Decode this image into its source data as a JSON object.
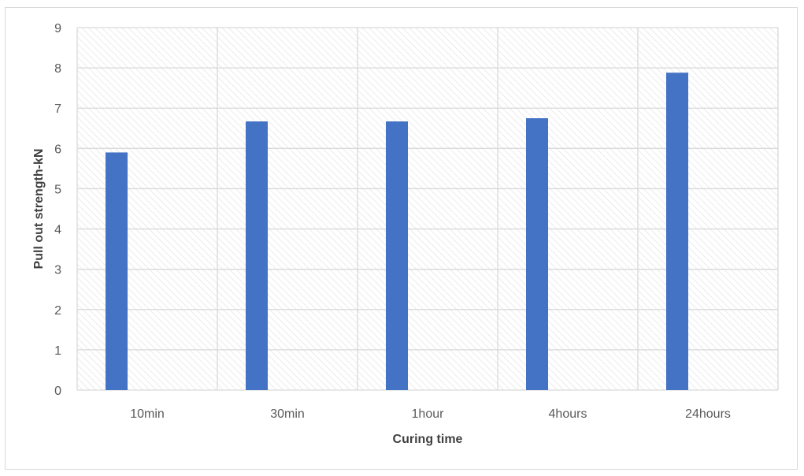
{
  "chart_data": {
    "type": "bar",
    "title": "",
    "xlabel": "Curing time",
    "ylabel": "Pull out strength-kN",
    "categories": [
      "10min",
      "30min",
      "1hour",
      "4hours",
      "24hours"
    ],
    "values": [
      5.9,
      6.67,
      6.67,
      6.75,
      7.88
    ],
    "ylim": [
      0,
      9
    ],
    "yticks": [
      0,
      1,
      2,
      3,
      4,
      5,
      6,
      7,
      8,
      9
    ],
    "grid": true,
    "legend": "none",
    "colors": {
      "bar": "#4472c4",
      "grid": "#d9d9d9",
      "hatch": "#e3e3e3",
      "axis_text": "#595959",
      "title_text": "#404040"
    }
  }
}
